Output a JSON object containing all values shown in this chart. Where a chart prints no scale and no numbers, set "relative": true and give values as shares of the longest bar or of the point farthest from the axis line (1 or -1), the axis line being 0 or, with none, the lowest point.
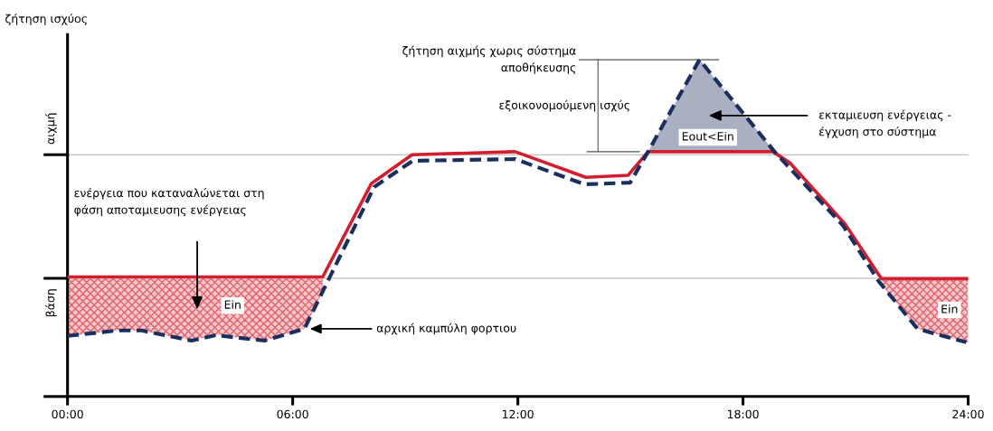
{
  "chart_data": {
    "type": "line",
    "relative": true,
    "ylabel": "ζήτηση ισχύος",
    "xlim": [
      0,
      24
    ],
    "xticks": [
      {
        "value": 0,
        "label": "00:00"
      },
      {
        "value": 6,
        "label": "06:00"
      },
      {
        "value": 12,
        "label": "12:00"
      },
      {
        "value": 18,
        "label": "18:00"
      },
      {
        "value": 24,
        "label": "24:00"
      }
    ],
    "grid": false,
    "series": [
      {
        "color": "#d21f2f",
        "line_style": "solid",
        "x": [
          0,
          6.8,
          8.1,
          9.18,
          11.93,
          13.81,
          14.94,
          15.47,
          18.8,
          19.25,
          20.72,
          21.69,
          24
        ],
        "values": [
          0.355,
          0.355,
          0.633,
          0.718,
          0.727,
          0.651,
          0.657,
          0.727,
          0.727,
          0.694,
          0.512,
          0.35,
          0.35
        ]
      },
      {
        "color": "#1b2f5e",
        "line_style": "dashed",
        "x": [
          0,
          1.33,
          1.98,
          3.3,
          3.95,
          5.25,
          6.31,
          8.17,
          9.2,
          11.93,
          13.78,
          14.99,
          15.47,
          16.84,
          18.84,
          20.67,
          21.61,
          22.65,
          23.95
        ],
        "values": [
          0.18,
          0.196,
          0.196,
          0.166,
          0.182,
          0.166,
          0.201,
          0.622,
          0.7,
          0.705,
          0.63,
          0.635,
          0.727,
          1,
          0.727,
          0.507,
          0.343,
          0.201,
          0.161
        ]
      }
    ],
    "ref_lines": [
      {
        "axis": "y",
        "value": 0.718,
        "label": "αιχμή",
        "color": "#b0b0b0"
      },
      {
        "axis": "y",
        "value": 0.351,
        "label": "βάση",
        "color": "#b0b0b0"
      }
    ],
    "annotations": [
      "ζήτηση αιχμής χωρις σύστημα\nαποθήκευσης",
      "εξοικονομούμενη ισχύς",
      "εκταμιευση ενέργειας -\nέγχυση στο σύστημα",
      "Eout<Ein",
      "ενέργεια που καταναλώνεται στη\nφάση αποταμιευσης ενέργειας",
      {
        "text": "Ein",
        "x": 4.4,
        "y": 0.27
      },
      {
        "text": "αρχική καμπύλη φορτιου",
        "x": 6.39,
        "y": 0.201
      },
      {
        "text": "Ein",
        "x": 23.5,
        "y": 0.257
      }
    ]
  }
}
